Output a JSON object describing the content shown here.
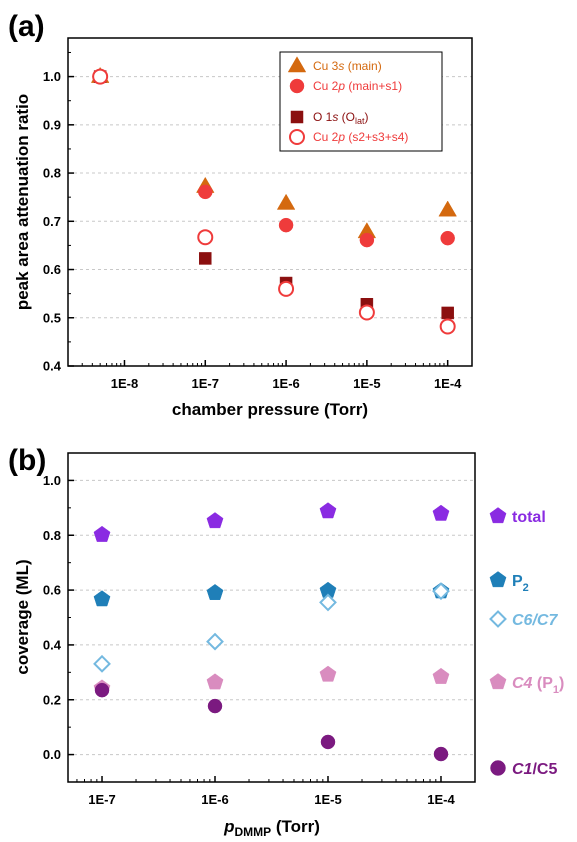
{
  "chart_data": [
    {
      "panel": "(a)",
      "type": "scatter",
      "xlabel": "chamber pressure (Torr)",
      "ylabel": "peak area attenuation ratio",
      "xscale": "log",
      "xlim": [
        2e-09,
        0.0002
      ],
      "ylim": [
        0.4,
        1.08
      ],
      "xticks": [
        "1E-8",
        "1E-7",
        "1E-6",
        "1E-5",
        "1E-4"
      ],
      "yticks": [
        "0.4",
        "0.5",
        "0.6",
        "0.7",
        "0.8",
        "0.9",
        "1.0"
      ],
      "grid": "horizontal dashed",
      "legend_position": "top-right",
      "series": [
        {
          "name": "Cu 3s (main)",
          "marker": "triangle",
          "color": "#d4690f",
          "filled": true,
          "x": [
            5e-09,
            1e-07,
            1e-06,
            1e-05,
            0.0001
          ],
          "y": [
            1.0,
            0.772,
            0.737,
            0.678,
            0.723
          ]
        },
        {
          "name": "Cu 2p (main+s1)",
          "marker": "circle",
          "color": "#ef3b3b",
          "filled": true,
          "x": [
            5e-09,
            1e-07,
            1e-06,
            1e-05,
            0.0001
          ],
          "y": [
            1.0,
            0.761,
            0.692,
            0.661,
            0.665
          ]
        },
        {
          "name": "O 1s (O_lat)",
          "marker": "square",
          "color": "#8b0f0f",
          "filled": true,
          "x": [
            5e-09,
            1e-07,
            1e-06,
            1e-05,
            0.0001
          ],
          "y": [
            1.0,
            0.623,
            0.572,
            0.528,
            0.51
          ]
        },
        {
          "name": "Cu 2p (s2+s3+s4)",
          "marker": "circle",
          "color": "#ef3b3b",
          "filled": false,
          "x": [
            5e-09,
            1e-07,
            1e-06,
            1e-05,
            0.0001
          ],
          "y": [
            1.0,
            0.667,
            0.56,
            0.511,
            0.482
          ]
        }
      ]
    },
    {
      "panel": "(b)",
      "type": "scatter",
      "xlabel": "pDMMP (Torr)",
      "ylabel": "coverage (ML)",
      "xscale": "log",
      "xlim": [
        5e-08,
        0.0002
      ],
      "ylim": [
        -0.1,
        1.1
      ],
      "xticks": [
        "1E-7",
        "1E-6",
        "1E-5",
        "1E-4"
      ],
      "yticks": [
        "0.0",
        "0.2",
        "0.4",
        "0.6",
        "0.8",
        "1.0"
      ],
      "grid": "horizontal dashed",
      "legend_position": "right (outside)",
      "series": [
        {
          "name": "total",
          "marker": "pentagon",
          "color": "#8a2be2",
          "filled": true,
          "x": [
            1e-07,
            1e-06,
            1e-05,
            0.0001
          ],
          "y": [
            0.802,
            0.852,
            0.888,
            0.879
          ]
        },
        {
          "name": "P2",
          "marker": "pentagon",
          "color": "#1f7fb8",
          "filled": true,
          "x": [
            1e-07,
            1e-06,
            1e-05,
            0.0001
          ],
          "y": [
            0.567,
            0.59,
            0.598,
            0.596
          ]
        },
        {
          "name": "C6/C7",
          "marker": "diamond",
          "color": "#74b9e0",
          "filled": false,
          "x": [
            1e-07,
            1e-06,
            1e-05,
            0.0001
          ],
          "y": [
            0.331,
            0.412,
            0.555,
            0.596
          ]
        },
        {
          "name": "C4 (P1)",
          "marker": "pentagon",
          "color": "#d98cbf",
          "filled": true,
          "x": [
            1e-07,
            1e-06,
            1e-05,
            0.0001
          ],
          "y": [
            0.242,
            0.264,
            0.292,
            0.284
          ]
        },
        {
          "name": "C1/C5",
          "marker": "circle",
          "color": "#7b1a80",
          "filled": true,
          "x": [
            1e-07,
            1e-06,
            1e-05,
            0.0001
          ],
          "y": [
            0.235,
            0.177,
            0.046,
            0.002
          ]
        }
      ]
    }
  ],
  "colors": {
    "cu3s": "#d4690f",
    "cu2p": "#ef3b3b",
    "o1s": "#8b0f0f",
    "total": "#8a2be2",
    "p2": "#1f7fb8",
    "c6c7": "#74b9e0",
    "c4": "#d98cbf",
    "c1c5": "#7b1a80"
  }
}
